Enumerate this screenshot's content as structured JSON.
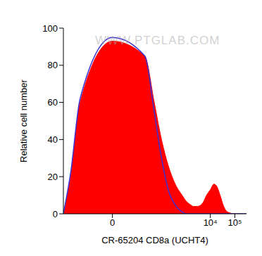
{
  "chart_data": {
    "type": "area",
    "watermark": "WWW.PTGLAB.COM",
    "x_label": "CR-65204 CD8a (UCHT4)",
    "y_label": "Relative cell number",
    "log": "x",
    "grid": false,
    "x": [
      -100,
      -50,
      -20,
      0,
      20,
      50,
      100,
      200,
      400,
      700,
      1000,
      1500,
      2000,
      3000,
      5000,
      7000,
      10000,
      14000,
      18000,
      25000,
      35000,
      50000,
      100000,
      300000
    ],
    "series": [
      {
        "type": "area",
        "color": "#ff0000",
        "values": [
          0,
          20,
          60,
          93,
          85,
          60,
          40,
          25,
          15,
          10,
          7,
          5,
          4,
          4,
          6,
          10,
          13,
          16,
          15,
          10,
          4,
          1,
          0,
          0
        ]
      },
      {
        "type": "line",
        "color": "#3a2fd0",
        "values": [
          0,
          22,
          62,
          95,
          85,
          55,
          30,
          12,
          4,
          1,
          0,
          0,
          0,
          0,
          0,
          0,
          0,
          0,
          0,
          0,
          0,
          0,
          0,
          0
        ]
      }
    ],
    "xlim": [
      -100,
      300000
    ],
    "xticks": [
      0,
      {
        "value": 10000,
        "label": "10⁴"
      },
      {
        "value": 100000,
        "label": "10⁵"
      }
    ],
    "ylim": [
      0,
      100
    ],
    "yticks": [
      0,
      20,
      40,
      60,
      80,
      100
    ]
  }
}
